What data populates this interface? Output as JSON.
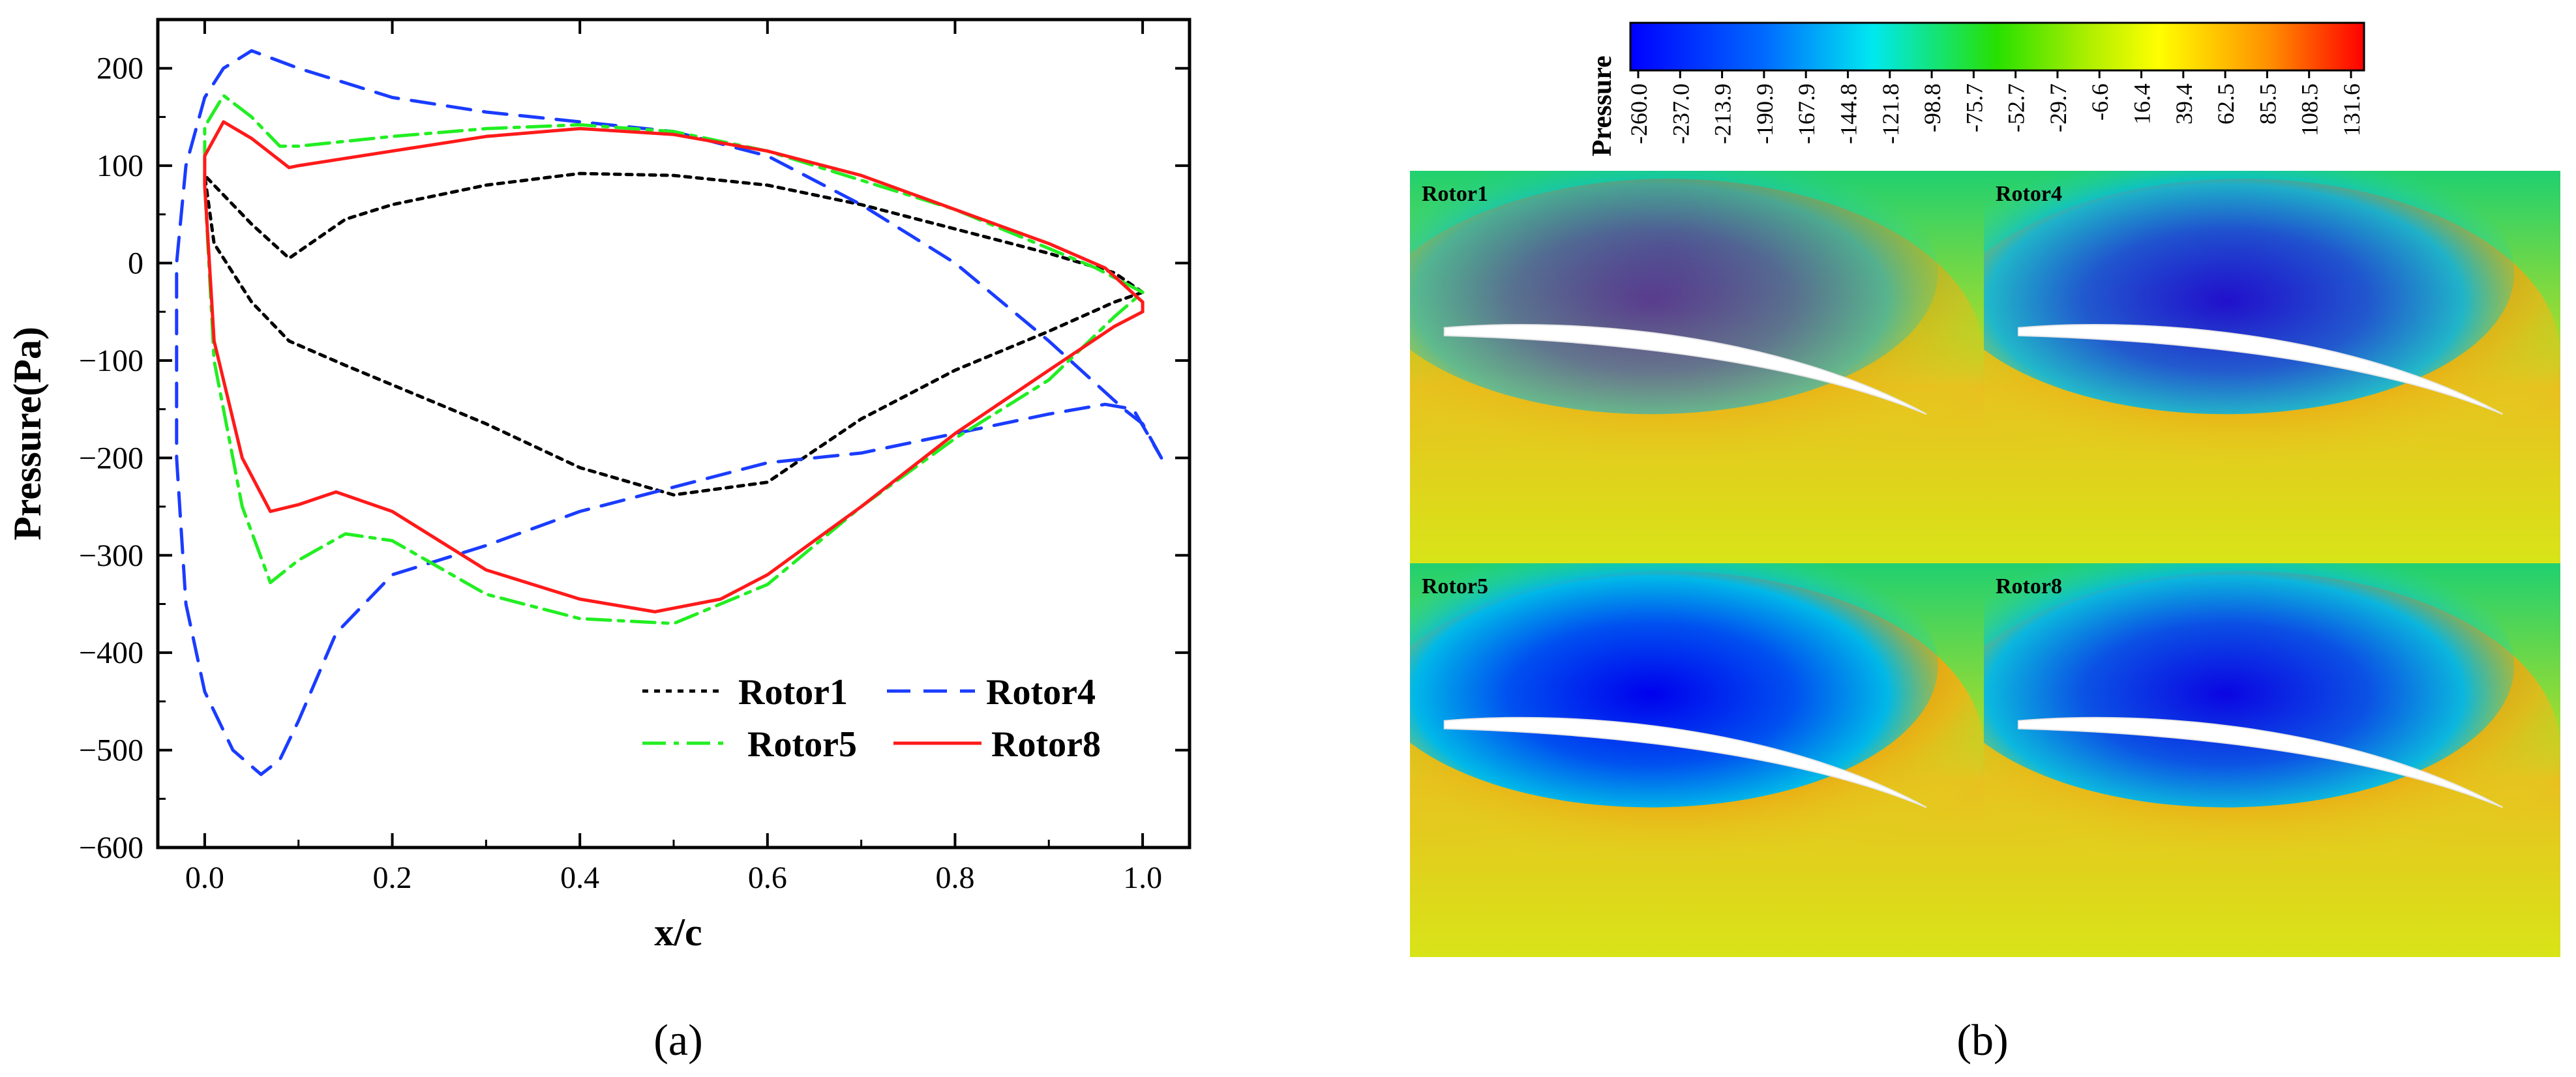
{
  "panel_a_label": "(a)",
  "panel_b_label": "(b)",
  "chart_data": [
    {
      "type": "line",
      "title": "",
      "xlabel": "x/c",
      "ylabel": "Pressure(Pa)",
      "xlim": [
        -0.05,
        1.05
      ],
      "ylim": [
        -600,
        250
      ],
      "xticks": [
        0.0,
        0.2,
        0.4,
        0.6,
        0.8,
        1.0
      ],
      "xtick_labels": [
        "0.0",
        "0.2",
        "0.4",
        "0.6",
        "0.8",
        "1.0"
      ],
      "yticks": [
        -600,
        -500,
        -400,
        -300,
        -200,
        -100,
        0,
        100,
        200
      ],
      "ytick_labels": [
        "−600",
        "−500",
        "−400",
        "−300",
        "−200",
        "−100",
        "0",
        "100",
        "200"
      ],
      "grid": false,
      "legend_position": "bottom-right",
      "series": [
        {
          "name": "Rotor1",
          "color": "#000000",
          "style": "dotted",
          "points": [
            [
              1.0,
              -30
            ],
            [
              0.97,
              -10
            ],
            [
              0.9,
              10
            ],
            [
              0.8,
              35
            ],
            [
              0.7,
              60
            ],
            [
              0.6,
              80
            ],
            [
              0.5,
              90
            ],
            [
              0.4,
              92
            ],
            [
              0.3,
              80
            ],
            [
              0.2,
              60
            ],
            [
              0.15,
              45
            ],
            [
              0.09,
              5
            ],
            [
              0.05,
              40
            ],
            [
              0.0,
              90
            ],
            [
              0.01,
              20
            ],
            [
              0.05,
              -40
            ],
            [
              0.09,
              -80
            ],
            [
              0.15,
              -105
            ],
            [
              0.2,
              -125
            ],
            [
              0.3,
              -165
            ],
            [
              0.4,
              -210
            ],
            [
              0.5,
              -238
            ],
            [
              0.6,
              -225
            ],
            [
              0.7,
              -160
            ],
            [
              0.8,
              -110
            ],
            [
              0.9,
              -70
            ],
            [
              0.97,
              -40
            ],
            [
              1.0,
              -30
            ]
          ]
        },
        {
          "name": "Rotor4",
          "color": "#1a3cff",
          "style": "dashed",
          "points": [
            [
              1.02,
              -200
            ],
            [
              1.0,
              -165
            ],
            [
              0.98,
              -150
            ],
            [
              0.9,
              -80
            ],
            [
              0.8,
              0
            ],
            [
              0.7,
              60
            ],
            [
              0.6,
              110
            ],
            [
              0.5,
              135
            ],
            [
              0.4,
              145
            ],
            [
              0.3,
              155
            ],
            [
              0.2,
              170
            ],
            [
              0.1,
              200
            ],
            [
              0.05,
              218
            ],
            [
              0.02,
              200
            ],
            [
              0.0,
              170
            ],
            [
              -0.02,
              100
            ],
            [
              -0.03,
              0
            ],
            [
              -0.03,
              -200
            ],
            [
              -0.02,
              -350
            ],
            [
              0.0,
              -440
            ],
            [
              0.03,
              -500
            ],
            [
              0.06,
              -525
            ],
            [
              0.08,
              -510
            ],
            [
              0.1,
              -470
            ],
            [
              0.14,
              -380
            ],
            [
              0.2,
              -320
            ],
            [
              0.3,
              -290
            ],
            [
              0.4,
              -255
            ],
            [
              0.5,
              -230
            ],
            [
              0.6,
              -205
            ],
            [
              0.7,
              -195
            ],
            [
              0.8,
              -175
            ],
            [
              0.9,
              -155
            ],
            [
              0.96,
              -145
            ],
            [
              0.99,
              -150
            ],
            [
              1.02,
              -200
            ]
          ]
        },
        {
          "name": "Rotor5",
          "color": "#22ee22",
          "style": "dashdot",
          "points": [
            [
              1.0,
              -30
            ],
            [
              0.95,
              -5
            ],
            [
              0.9,
              15
            ],
            [
              0.8,
              55
            ],
            [
              0.7,
              85
            ],
            [
              0.6,
              115
            ],
            [
              0.5,
              135
            ],
            [
              0.4,
              142
            ],
            [
              0.3,
              138
            ],
            [
              0.2,
              130
            ],
            [
              0.1,
              120
            ],
            [
              0.08,
              120
            ],
            [
              0.05,
              150
            ],
            [
              0.02,
              172
            ],
            [
              0.0,
              140
            ],
            [
              0.0,
              80
            ],
            [
              0.01,
              -100
            ],
            [
              0.04,
              -250
            ],
            [
              0.07,
              -328
            ],
            [
              0.1,
              -305
            ],
            [
              0.15,
              -278
            ],
            [
              0.2,
              -285
            ],
            [
              0.3,
              -340
            ],
            [
              0.4,
              -365
            ],
            [
              0.5,
              -370
            ],
            [
              0.6,
              -330
            ],
            [
              0.7,
              -250
            ],
            [
              0.8,
              -180
            ],
            [
              0.9,
              -120
            ],
            [
              0.97,
              -55
            ],
            [
              1.0,
              -30
            ]
          ]
        },
        {
          "name": "Rotor8",
          "color": "#ff1a1a",
          "style": "solid",
          "points": [
            [
              1.0,
              -40
            ],
            [
              0.96,
              -5
            ],
            [
              0.9,
              20
            ],
            [
              0.8,
              55
            ],
            [
              0.7,
              90
            ],
            [
              0.6,
              115
            ],
            [
              0.5,
              132
            ],
            [
              0.4,
              138
            ],
            [
              0.3,
              130
            ],
            [
              0.2,
              115
            ],
            [
              0.1,
              100
            ],
            [
              0.09,
              98
            ],
            [
              0.05,
              128
            ],
            [
              0.02,
              145
            ],
            [
              0.0,
              110
            ],
            [
              0.0,
              80
            ],
            [
              0.01,
              -80
            ],
            [
              0.04,
              -200
            ],
            [
              0.07,
              -255
            ],
            [
              0.1,
              -248
            ],
            [
              0.14,
              -235
            ],
            [
              0.2,
              -255
            ],
            [
              0.3,
              -315
            ],
            [
              0.4,
              -345
            ],
            [
              0.48,
              -358
            ],
            [
              0.55,
              -345
            ],
            [
              0.6,
              -320
            ],
            [
              0.7,
              -250
            ],
            [
              0.8,
              -175
            ],
            [
              0.9,
              -110
            ],
            [
              0.97,
              -65
            ],
            [
              1.0,
              -50
            ],
            [
              1.0,
              -40
            ]
          ]
        }
      ]
    },
    {
      "type": "heatmap",
      "colorbar_title": "Pressure",
      "colorbar_min": -260.0,
      "colorbar_max": 150.0,
      "colorbar_tick_labels": [
        "-260.0",
        "-237.0",
        "-213.9",
        "-190.9",
        "-167.9",
        "-144.8",
        "-121.8",
        "-98.8",
        "-75.7",
        "-52.7",
        "-29.7",
        "-6.6",
        "16.4",
        "39.4",
        "62.5",
        "85.5",
        "108.5",
        "131.6"
      ],
      "panels": [
        {
          "name": "Rotor1",
          "suction_strength": 0.55,
          "pressure_strength": 0.6
        },
        {
          "name": "Rotor4",
          "suction_strength": 0.85,
          "pressure_strength": 0.8
        },
        {
          "name": "Rotor5",
          "suction_strength": 1.0,
          "pressure_strength": 0.95
        },
        {
          "name": "Rotor8",
          "suction_strength": 0.95,
          "pressure_strength": 0.85
        }
      ]
    }
  ]
}
